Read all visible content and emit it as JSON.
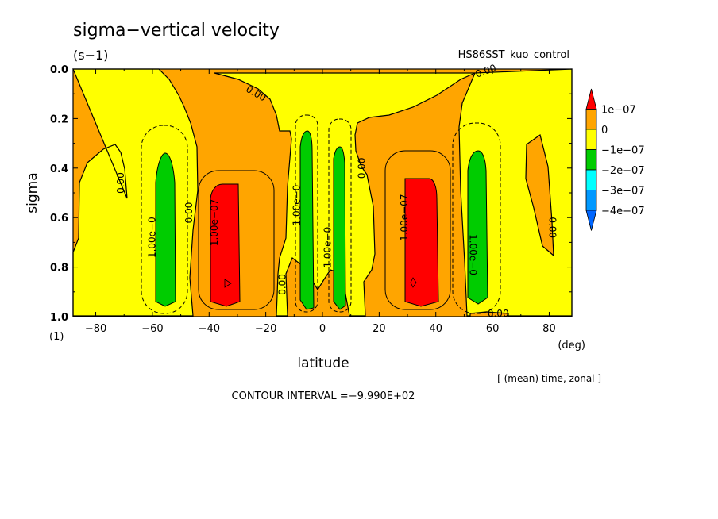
{
  "chart_data": {
    "type": "contour",
    "title": "sigma−vertical velocity",
    "units": "(s−1)",
    "run_name": "HS86SST_kuo_control",
    "xlabel": "latitude",
    "x_unit": "(deg)",
    "ylabel": "sigma",
    "y_unit": "(1)",
    "x_ticks": [
      "−80",
      "−60",
      "−40",
      "−20",
      "0",
      "20",
      "40",
      "60",
      "80"
    ],
    "x_tick_values": [
      -80,
      -60,
      -40,
      -20,
      0,
      20,
      40,
      60,
      80
    ],
    "y_ticks": [
      "0.0",
      "0.2",
      "0.4",
      "0.6",
      "0.8",
      "1.0"
    ],
    "y_tick_values": [
      0.0,
      0.2,
      0.4,
      0.6,
      0.8,
      1.0
    ],
    "xlim": [
      -88,
      88
    ],
    "ylim": [
      0.0,
      1.0
    ],
    "y_inverted": true,
    "legend_placement": "right",
    "colorbar": {
      "labels": [
        "1e−07",
        "0",
        "−1e−07",
        "−2e−07",
        "−3e−07",
        "−4e−07"
      ],
      "colors": [
        "#ff0000",
        "#ffa500",
        "#ffff00",
        "#00cc00",
        "#00ffff",
        "#0099ff",
        "#0066ff"
      ]
    },
    "contour_labels": [
      {
        "text": "0.00",
        "x": -70,
        "y": 0.46,
        "rot": -90
      },
      {
        "text": "1.00e−0",
        "x": -59,
        "y": 0.68,
        "rot": -90
      },
      {
        "text": "0.00",
        "x": -46,
        "y": 0.58,
        "rot": -90
      },
      {
        "text": "1.00e−07",
        "x": -37,
        "y": 0.62,
        "rot": -90
      },
      {
        "text": "0.00",
        "x": -24,
        "y": 0.11,
        "rot": 30
      },
      {
        "text": "0.00",
        "x": -13,
        "y": 0.87,
        "rot": -90
      },
      {
        "text": "1.00e−0",
        "x": -8,
        "y": 0.55,
        "rot": -90
      },
      {
        "text": "1.00e−0",
        "x": 3,
        "y": 0.72,
        "rot": -90
      },
      {
        "text": "0.00",
        "x": 15,
        "y": 0.4,
        "rot": -90
      },
      {
        "text": "1.00e−07",
        "x": 30,
        "y": 0.6,
        "rot": -90
      },
      {
        "text": "1.00e−0",
        "x": 52,
        "y": 0.75,
        "rot": 90
      },
      {
        "text": "0.00",
        "x": 58,
        "y": 0.02,
        "rot": -20
      },
      {
        "text": "0.00",
        "x": 80,
        "y": 0.64,
        "rot": 90
      },
      {
        "text": "0.00",
        "x": 62,
        "y": 1.0,
        "rot": 0
      }
    ],
    "footer_note": "[ (mean) time, zonal ]",
    "contour_interval_text": "CONTOUR INTERVAL =−9.990E+02"
  }
}
